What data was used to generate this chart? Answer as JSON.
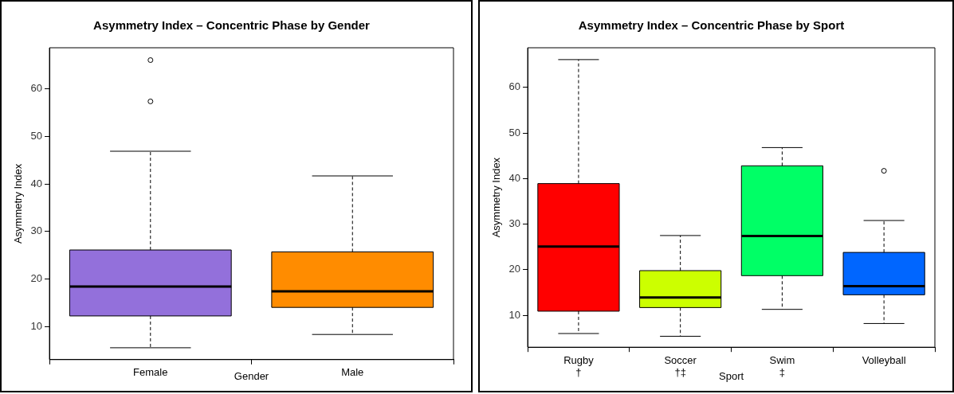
{
  "chart_data": [
    {
      "type": "box",
      "title": "Asymmetry Index – Concentric Phase by Gender",
      "xlabel": "Gender",
      "ylabel": "Asymmetry Index",
      "categories": [
        "Female",
        "Male"
      ],
      "colors": [
        "#9370db",
        "#ff8c00"
      ],
      "boxes": [
        {
          "low": 5.5,
          "q1": 12.2,
          "median": 18.4,
          "q3": 26.1,
          "high": 46.9,
          "outliers": [
            57.4,
            66.1
          ]
        },
        {
          "low": 8.3,
          "q1": 14.0,
          "median": 17.4,
          "q3": 25.7,
          "high": 41.7
        }
      ],
      "ylim": [
        3,
        68.7
      ],
      "yticks": [
        10,
        20,
        30,
        40,
        50,
        60
      ],
      "grid": false
    },
    {
      "type": "box",
      "title": "Asymmetry Index – Concentric Phase by Sport",
      "xlabel": "Sport",
      "ylabel": "Asymmetry Index",
      "categories": [
        "Rugby\n†",
        "Soccer\n†‡",
        "Swim\n‡",
        "Volleyball"
      ],
      "colors": [
        "#ff0000",
        "#ccff00",
        "#00ff66",
        "#0066ff"
      ],
      "boxes": [
        {
          "low": 6.0,
          "q1": 10.9,
          "median": 25.1,
          "q3": 38.9,
          "high": 66.1
        },
        {
          "low": 5.4,
          "q1": 11.7,
          "median": 13.9,
          "q3": 19.8,
          "high": 27.5
        },
        {
          "low": 11.3,
          "q1": 18.7,
          "median": 27.4,
          "q3": 42.8,
          "high": 46.8
        },
        {
          "low": 8.2,
          "q1": 14.5,
          "median": 16.4,
          "q3": 23.8,
          "high": 30.8,
          "outliers": [
            41.7
          ]
        }
      ],
      "ylim": [
        3,
        68.7
      ],
      "yticks": [
        10,
        20,
        30,
        40,
        50,
        60
      ],
      "grid": false
    }
  ]
}
